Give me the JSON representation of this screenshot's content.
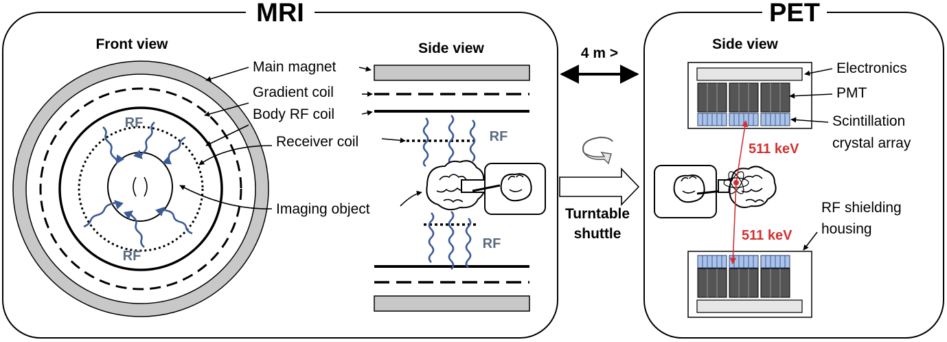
{
  "colors": {
    "magnet_gray": "#c8c8c8",
    "rf_wave_blue": "#3b5b95",
    "rf_text": "#5a6b80",
    "gamma_red": "#d32f2f",
    "pmt_gray": "#555555",
    "crystal_blue": "#a9c3ec",
    "electronics_gray": "#e6e6e6"
  },
  "mri": {
    "title": "MRI",
    "front_view_title": "Front view",
    "side_view_title": "Side view",
    "labels": {
      "main_magnet": "Main magnet",
      "gradient_coil": "Gradient coil",
      "body_rf_coil": "Body RF coil",
      "receiver_coil": "Receiver coil",
      "imaging_object": "Imaging object"
    },
    "rf": "RF"
  },
  "transfer": {
    "distance": "4 m >",
    "shuttle_line1": "Turntable",
    "shuttle_line2": "shuttle"
  },
  "pet": {
    "title": "PET",
    "side_view_title": "Side view",
    "labels": {
      "electronics": "Electronics",
      "pmt": "PMT",
      "scint_line1": "Scintillation",
      "scint_line2": "crystal array",
      "shield_line1": "RF shielding",
      "shield_line2": "housing"
    },
    "gamma_energy": "511 keV"
  },
  "icons": [
    "double-arrow-icon",
    "rotate-arrow-icon",
    "hollow-right-arrow-icon",
    "heart-icon",
    "brain-icon",
    "atom-icon"
  ]
}
